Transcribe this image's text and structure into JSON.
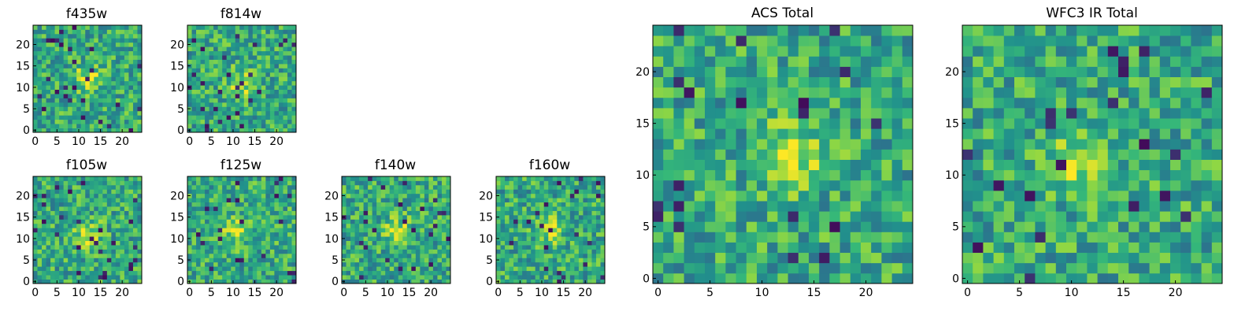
{
  "chart_data": [
    {
      "type": "heatmap",
      "title": "f435w",
      "x_ticks": [
        0,
        5,
        10,
        15,
        20
      ],
      "y_ticks": [
        0,
        5,
        10,
        15,
        20
      ],
      "xlim": [
        -0.5,
        24.5
      ],
      "ylim": [
        -0.5,
        24.5
      ],
      "grid_size": [
        25,
        25
      ],
      "colormap": "viridis",
      "values": "25x25 noise image"
    },
    {
      "type": "heatmap",
      "title": "f814w",
      "x_ticks": [
        0,
        5,
        10,
        15,
        20
      ],
      "y_ticks": [
        0,
        5,
        10,
        15,
        20
      ],
      "xlim": [
        -0.5,
        24.5
      ],
      "ylim": [
        -0.5,
        24.5
      ],
      "grid_size": [
        25,
        25
      ],
      "colormap": "viridis",
      "values": "25x25 noise image"
    },
    {
      "type": "heatmap",
      "title": "f105w",
      "x_ticks": [
        0,
        5,
        10,
        15,
        20
      ],
      "y_ticks": [
        0,
        5,
        10,
        15,
        20
      ],
      "xlim": [
        -0.5,
        24.5
      ],
      "ylim": [
        -0.5,
        24.5
      ],
      "grid_size": [
        25,
        25
      ],
      "colormap": "viridis",
      "values": "25x25 noise image"
    },
    {
      "type": "heatmap",
      "title": "f125w",
      "x_ticks": [
        0,
        5,
        10,
        15,
        20
      ],
      "y_ticks": [
        0,
        5,
        10,
        15,
        20
      ],
      "xlim": [
        -0.5,
        24.5
      ],
      "ylim": [
        -0.5,
        24.5
      ],
      "grid_size": [
        25,
        25
      ],
      "colormap": "viridis",
      "values": "25x25 noise image"
    },
    {
      "type": "heatmap",
      "title": "f140w",
      "x_ticks": [
        0,
        5,
        10,
        15,
        20
      ],
      "y_ticks": [
        0,
        5,
        10,
        15,
        20
      ],
      "xlim": [
        -0.5,
        24.5
      ],
      "ylim": [
        -0.5,
        24.5
      ],
      "grid_size": [
        25,
        25
      ],
      "colormap": "viridis",
      "values": "25x25 noise image"
    },
    {
      "type": "heatmap",
      "title": "f160w",
      "x_ticks": [
        0,
        5,
        10,
        15,
        20
      ],
      "y_ticks": [
        0,
        5,
        10,
        15,
        20
      ],
      "xlim": [
        -0.5,
        24.5
      ],
      "ylim": [
        -0.5,
        24.5
      ],
      "grid_size": [
        25,
        25
      ],
      "colormap": "viridis",
      "values": "25x25 noise image"
    },
    {
      "type": "heatmap",
      "title": "ACS Total",
      "x_ticks": [
        0,
        5,
        10,
        15,
        20
      ],
      "y_ticks": [
        0,
        5,
        10,
        15,
        20
      ],
      "xlim": [
        -0.5,
        24.5
      ],
      "ylim": [
        -0.5,
        24.5
      ],
      "grid_size": [
        25,
        25
      ],
      "colormap": "viridis",
      "values": "25x25 noise image"
    },
    {
      "type": "heatmap",
      "title": "WFC3 IR Total",
      "x_ticks": [
        0,
        5,
        10,
        15,
        20
      ],
      "y_ticks": [
        0,
        5,
        10,
        15,
        20
      ],
      "xlim": [
        -0.5,
        24.5
      ],
      "ylim": [
        -0.5,
        24.5
      ],
      "grid_size": [
        25,
        25
      ],
      "colormap": "viridis",
      "values": "25x25 noise image"
    }
  ],
  "colors": {
    "cmap_stops": [
      "#440154",
      "#31688e",
      "#21918c",
      "#35b779",
      "#90d743",
      "#fde725"
    ]
  }
}
